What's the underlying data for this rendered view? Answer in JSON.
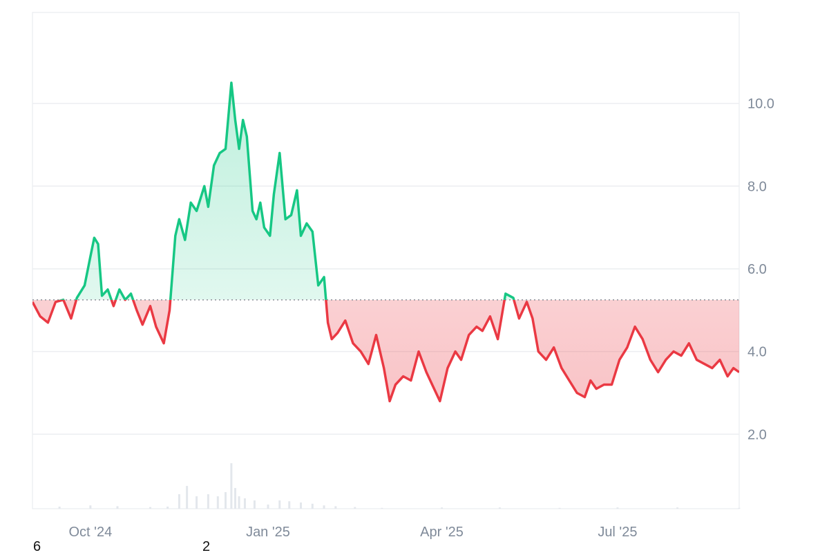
{
  "chart_data": {
    "type": "area",
    "baseline": 5.25,
    "ylim": [
      0.2,
      12.2
    ],
    "yticks": [
      2.0,
      4.0,
      6.0,
      8.0,
      10.0
    ],
    "ytick_labels": [
      "2.0",
      "4.0",
      "6.0",
      "8.0",
      "10.0"
    ],
    "xlim": [
      "2024-09-01",
      "2025-09-02"
    ],
    "xticks": [
      "2024-10-01",
      "2025-01-01",
      "2025-04-01",
      "2025-07-01"
    ],
    "xtick_labels": [
      "Oct '24",
      "Jan '25",
      "Apr '25",
      "Jul '25"
    ],
    "grid": true,
    "colors": {
      "above": "#16c784",
      "below": "#ea3943",
      "above_fill": "#16c784",
      "below_fill": "#ea3943",
      "baseline": "#8a8f98",
      "grid": "#eceef1",
      "volume": "#e3e7ec"
    },
    "price": {
      "x": [
        "2024-09-01",
        "2024-09-05",
        "2024-09-09",
        "2024-09-13",
        "2024-09-17",
        "2024-09-21",
        "2024-09-24",
        "2024-09-28",
        "2024-10-01",
        "2024-10-03",
        "2024-10-05",
        "2024-10-07",
        "2024-10-10",
        "2024-10-13",
        "2024-10-16",
        "2024-10-19",
        "2024-10-22",
        "2024-10-25",
        "2024-10-28",
        "2024-11-01",
        "2024-11-04",
        "2024-11-08",
        "2024-11-11",
        "2024-11-14",
        "2024-11-16",
        "2024-11-19",
        "2024-11-22",
        "2024-11-25",
        "2024-11-27",
        "2024-11-29",
        "2024-12-01",
        "2024-12-04",
        "2024-12-07",
        "2024-12-10",
        "2024-12-13",
        "2024-12-15",
        "2024-12-17",
        "2024-12-19",
        "2024-12-21",
        "2024-12-24",
        "2024-12-26",
        "2024-12-28",
        "2024-12-30",
        "2025-01-02",
        "2025-01-04",
        "2025-01-07",
        "2025-01-10",
        "2025-01-13",
        "2025-01-16",
        "2025-01-18",
        "2025-01-21",
        "2025-01-24",
        "2025-01-27",
        "2025-01-30",
        "2025-02-01",
        "2025-02-03",
        "2025-02-06",
        "2025-02-10",
        "2025-02-14",
        "2025-02-18",
        "2025-02-22",
        "2025-02-26",
        "2025-03-02",
        "2025-03-05",
        "2025-03-08",
        "2025-03-12",
        "2025-03-16",
        "2025-03-20",
        "2025-03-24",
        "2025-03-27",
        "2025-03-31",
        "2025-04-04",
        "2025-04-08",
        "2025-04-11",
        "2025-04-15",
        "2025-04-19",
        "2025-04-22",
        "2025-04-26",
        "2025-04-30",
        "2025-05-04",
        "2025-05-08",
        "2025-05-11",
        "2025-05-15",
        "2025-05-18",
        "2025-05-21",
        "2025-05-25",
        "2025-05-29",
        "2025-06-02",
        "2025-06-06",
        "2025-06-10",
        "2025-06-14",
        "2025-06-17",
        "2025-06-20",
        "2025-06-24",
        "2025-06-28",
        "2025-07-02",
        "2025-07-06",
        "2025-07-10",
        "2025-07-14",
        "2025-07-18",
        "2025-07-22",
        "2025-07-26",
        "2025-07-30",
        "2025-08-03",
        "2025-08-07",
        "2025-08-11",
        "2025-08-15",
        "2025-08-19",
        "2025-08-23",
        "2025-08-27",
        "2025-08-30",
        "2025-09-02"
      ],
      "y": [
        5.2,
        4.85,
        4.7,
        5.2,
        5.25,
        4.8,
        5.3,
        5.6,
        6.3,
        6.75,
        6.6,
        5.35,
        5.5,
        5.1,
        5.5,
        5.25,
        5.4,
        5.0,
        4.65,
        5.1,
        4.6,
        4.2,
        5.0,
        6.8,
        7.2,
        6.7,
        7.6,
        7.4,
        7.7,
        8.0,
        7.5,
        8.5,
        8.8,
        8.9,
        10.5,
        9.6,
        8.9,
        9.6,
        9.2,
        7.4,
        7.2,
        7.6,
        7.0,
        6.8,
        7.8,
        8.8,
        7.2,
        7.3,
        7.9,
        6.8,
        7.1,
        6.9,
        5.6,
        5.8,
        4.7,
        4.3,
        4.45,
        4.75,
        4.2,
        4.0,
        3.7,
        4.4,
        3.6,
        2.8,
        3.2,
        3.4,
        3.3,
        4.0,
        3.5,
        3.2,
        2.8,
        3.6,
        4.0,
        3.8,
        4.4,
        4.6,
        4.5,
        4.85,
        4.3,
        5.4,
        5.3,
        4.8,
        5.2,
        4.8,
        4.0,
        3.8,
        4.1,
        3.6,
        3.3,
        3.0,
        2.9,
        3.3,
        3.1,
        3.2,
        3.2,
        3.8,
        4.1,
        4.6,
        4.3,
        3.8,
        3.5,
        3.8,
        4.0,
        3.9,
        4.2,
        3.8,
        3.7,
        3.6,
        3.8,
        3.4,
        3.6,
        3.5
      ]
    },
    "volume": {
      "x": [
        "2024-09-01",
        "2024-09-15",
        "2024-10-01",
        "2024-10-15",
        "2024-11-01",
        "2024-11-10",
        "2024-11-16",
        "2024-11-20",
        "2024-11-25",
        "2024-12-01",
        "2024-12-06",
        "2024-12-10",
        "2024-12-13",
        "2024-12-15",
        "2024-12-17",
        "2024-12-20",
        "2024-12-25",
        "2025-01-01",
        "2025-01-07",
        "2025-01-12",
        "2025-01-18",
        "2025-01-24",
        "2025-01-30",
        "2025-02-05",
        "2025-02-15",
        "2025-03-01",
        "2025-04-01",
        "2025-05-01",
        "2025-06-01",
        "2025-07-01",
        "2025-08-01",
        "2025-09-02"
      ],
      "y": [
        0.0,
        0.05,
        0.08,
        0.06,
        0.04,
        0.05,
        0.35,
        0.55,
        0.3,
        0.35,
        0.3,
        0.4,
        1.1,
        0.5,
        0.3,
        0.25,
        0.2,
        0.1,
        0.2,
        0.18,
        0.15,
        0.12,
        0.08,
        0.06,
        0.04,
        0.02,
        0.03,
        0.03,
        0.02,
        0.03,
        0.03,
        0.02
      ]
    }
  },
  "labels": {
    "bottom_left": "6",
    "bottom_mid": "2"
  }
}
